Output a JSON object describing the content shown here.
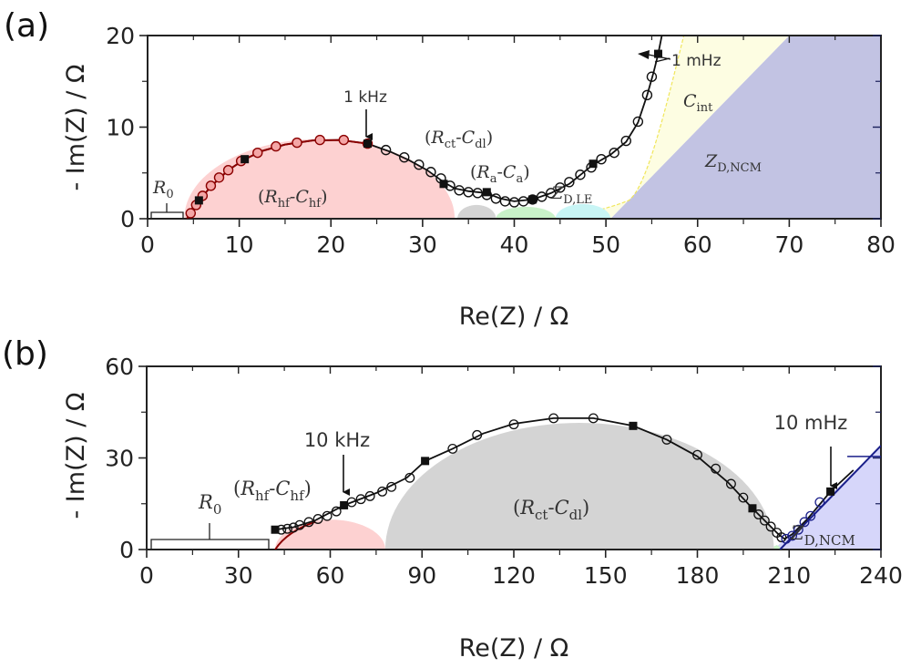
{
  "chart_data": [
    {
      "panel": "(a)",
      "type": "scatter",
      "title": "",
      "xlabel": "Re(Z) / Ω",
      "ylabel": "- Im(Z) / Ω",
      "xlim": [
        0,
        80
      ],
      "ylim": [
        0,
        20
      ],
      "xticks": [
        0,
        10,
        20,
        30,
        40,
        50,
        60,
        70,
        80
      ],
      "yticks": [
        0,
        10,
        20
      ],
      "grid": false,
      "series": [
        {
          "name": "measured (open circles)",
          "marker": "open-circle",
          "x": [
            4.7,
            5.3,
            6.0,
            6.9,
            7.8,
            8.8,
            10.2,
            12.0,
            14.0,
            16.3,
            18.8,
            21.4,
            24.0,
            26.0,
            28.0,
            29.6,
            30.9,
            32.0,
            33.0,
            34.0,
            35.0,
            36.0,
            37.0,
            38.0,
            39.0,
            40.0,
            41.0,
            42.0,
            43.0,
            44.0,
            45.0,
            46.0,
            47.2,
            48.4,
            49.5,
            50.9,
            52.2,
            53.5,
            54.5,
            55.0
          ],
          "y": [
            0.6,
            1.5,
            2.5,
            3.6,
            4.5,
            5.3,
            6.3,
            7.2,
            7.9,
            8.3,
            8.6,
            8.6,
            8.2,
            7.5,
            6.7,
            5.9,
            5.1,
            4.4,
            3.6,
            3.1,
            2.9,
            2.8,
            2.6,
            2.2,
            1.9,
            1.8,
            1.9,
            2.1,
            2.4,
            2.8,
            3.4,
            4.0,
            4.8,
            5.6,
            6.5,
            7.2,
            8.5,
            10.6,
            13.5,
            15.5
          ]
        },
        {
          "name": "decade markers (filled squares)",
          "marker": "filled-square",
          "x": [
            5.6,
            10.6,
            24.0,
            32.3,
            37.0,
            42.0,
            48.6,
            55.7
          ],
          "y": [
            2.0,
            6.5,
            8.2,
            3.8,
            2.9,
            2.1,
            6.0,
            18.0
          ]
        }
      ],
      "regions": [
        {
          "name": "(Rhf-Chf)",
          "color": "#fdd1d1",
          "x_range": [
            4.0,
            33.5
          ],
          "peak": 8.7
        },
        {
          "name": "gray sub-arc",
          "color": "#d4d4d4",
          "x_range": [
            33.8,
            38.0
          ],
          "peak": 1.5
        },
        {
          "name": "(Ra-Ca)",
          "color": "#c9f2c9",
          "x_range": [
            38.0,
            44.5
          ],
          "peak": 1.3
        },
        {
          "name": "ZD,LE",
          "color": "#c8f5f5",
          "x_range": [
            44.5,
            50.5
          ],
          "peak": 1.6
        },
        {
          "name": "Cint",
          "color": "#fdfde2",
          "boundary_color": "#f0e65a"
        },
        {
          "name": "ZD,NCM",
          "color": "#c2c3e3"
        }
      ],
      "annotations": [
        "1 kHz",
        "1 mHz",
        "R0",
        "(Rhf-Chf)",
        "(Rct-Cdl)",
        "(Ra-Ca)",
        "ZD,LE",
        "Cint",
        "ZD,NCM"
      ]
    },
    {
      "panel": "(b)",
      "type": "scatter",
      "title": "",
      "xlabel": "Re(Z) / Ω",
      "ylabel": "- Im(Z) / Ω",
      "xlim": [
        0,
        240
      ],
      "ylim": [
        0,
        60
      ],
      "xticks": [
        0,
        30,
        60,
        90,
        120,
        150,
        180,
        210,
        240
      ],
      "yticks": [
        0,
        30,
        60
      ],
      "grid": false,
      "series": [
        {
          "name": "measured (open circles)",
          "marker": "open-circle",
          "x": [
            44,
            46,
            48,
            50,
            53,
            56,
            59,
            62,
            67,
            70,
            73,
            77,
            80,
            86,
            100,
            108,
            120,
            133,
            146,
            170,
            180,
            186,
            191,
            195,
            200,
            202,
            204,
            206,
            207.5,
            209,
            211,
            213,
            215,
            217,
            220
          ],
          "y": [
            6.5,
            6.8,
            7.2,
            8.0,
            9.0,
            10.0,
            11.0,
            12.5,
            15.5,
            16.5,
            17.5,
            19.0,
            20.5,
            23.5,
            33.0,
            37.5,
            41.0,
            43.0,
            43.0,
            36.0,
            31.0,
            26.5,
            21.5,
            17.0,
            11.5,
            9.5,
            7.5,
            5.5,
            4.0,
            3.5,
            4.5,
            6.5,
            9.0,
            11.0,
            15.5
          ]
        },
        {
          "name": "decade markers (filled squares)",
          "marker": "filled-square",
          "x": [
            42,
            64.5,
            91,
            159,
            198,
            223.5
          ],
          "y": [
            6.5,
            14.5,
            29.0,
            40.5,
            13.5,
            19.0
          ]
        }
      ],
      "regions": [
        {
          "name": "(Rhf-Chf)",
          "color": "#fdd1d1",
          "x_range": [
            42,
            78
          ],
          "peak": 9.8
        },
        {
          "name": "(Rct-Cdl)",
          "color": "#d4d4d4",
          "x_range": [
            78,
            205
          ],
          "peak": 41.5
        },
        {
          "name": "ZD,NCM",
          "color": "#d6d6fa",
          "line_color": "#1a1f8a",
          "line": [
            [
              207,
              0
            ],
            [
              240,
              34
            ]
          ]
        }
      ],
      "annotations": [
        "10 kHz",
        "10 mHz",
        "R0",
        "(Rhf-Chf)",
        "(Rct-Cdl)",
        "ZD,NCM"
      ]
    }
  ],
  "panels": {
    "a": {
      "label": "(a)",
      "xlabel": "Re(Z) / Ω",
      "ylabel": "- Im(Z) / Ω",
      "xticks": [
        "0",
        "10",
        "20",
        "30",
        "40",
        "50",
        "60",
        "70",
        "80"
      ],
      "yticks": [
        "0",
        "10",
        "20"
      ],
      "freq_high": "1 kHz",
      "freq_low": "1 mHz",
      "r0": "R",
      "r0_sub": "0",
      "rhf": "R",
      "rhf_sub": "hf",
      "chf": "C",
      "chf_sub": "hf",
      "rct": "R",
      "rct_sub": "ct",
      "cdl": "C",
      "cdl_sub": "dl",
      "ra": "R",
      "ra_sub": "a",
      "ca": "C",
      "ca_sub": "a",
      "zdle": "Z",
      "zdle_sub": "D,LE",
      "cint": "C",
      "cint_sub": "int",
      "zdncm": "Z",
      "zdncm_sub": "D,NCM"
    },
    "b": {
      "label": "(b)",
      "xlabel": "Re(Z) / Ω",
      "ylabel": "- Im(Z) / Ω",
      "xticks": [
        "0",
        "30",
        "60",
        "90",
        "120",
        "150",
        "180",
        "210",
        "240"
      ],
      "yticks": [
        "0",
        "30",
        "60"
      ],
      "freq_high": "10 kHz",
      "freq_low": "10 mHz",
      "r0": "R",
      "r0_sub": "0",
      "rhf": "R",
      "rhf_sub": "hf",
      "chf": "C",
      "chf_sub": "hf",
      "rct": "R",
      "rct_sub": "ct",
      "cdl": "C",
      "cdl_sub": "dl",
      "zdncm": "Z",
      "zdncm_sub": "D,NCM"
    }
  }
}
